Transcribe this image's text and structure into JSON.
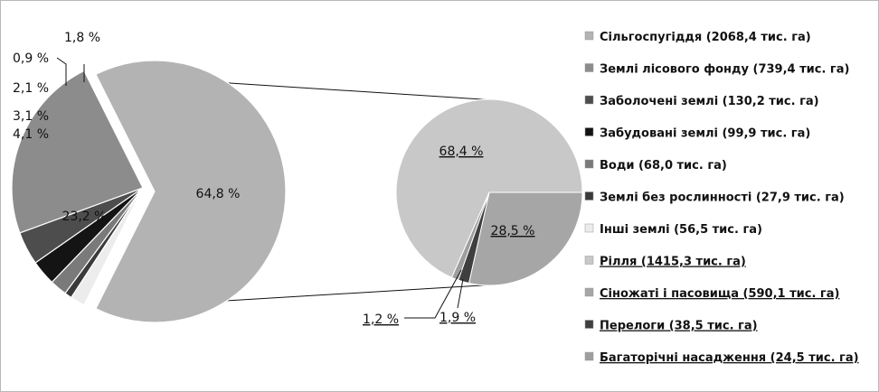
{
  "chart_data": [
    {
      "type": "pie",
      "title": "",
      "slices": [
        {
          "label": "64,8 %",
          "value": 64.8,
          "color": "#b3b3b3",
          "legend": "Сільгоспугіддя  (2068,4 тис. га)"
        },
        {
          "label": "23,2 %",
          "value": 23.2,
          "color": "#8c8c8c",
          "legend": "Землі лісового  фонду (739,4 тис. га)"
        },
        {
          "label": "4,1 %",
          "value": 4.1,
          "color": "#4d4d4d",
          "legend": "Заболочені землі (130,2 тис. га)"
        },
        {
          "label": "3,1 %",
          "value": 3.1,
          "color": "#141414",
          "legend": "Забудовані землі (99,9 тис. га)"
        },
        {
          "label": "2,1 %",
          "value": 2.1,
          "color": "#7a7a7a",
          "legend": "Води (68,0 тис. га)"
        },
        {
          "label": "0,9 %",
          "value": 0.9,
          "color": "#3a3a3a",
          "legend": "Землі без рослинності (27,9 тис. га)"
        },
        {
          "label": "1,8 %",
          "value": 1.8,
          "color": "#ececec",
          "legend": "Інші землі (56,5 тис. га)"
        }
      ]
    },
    {
      "type": "pie",
      "title": "",
      "slices": [
        {
          "label": "68,4 %",
          "value": 68.4,
          "color": "#c8c8c8",
          "legend": "Рілля  (1415,3 тис. га)"
        },
        {
          "label": "28,5 %",
          "value": 28.5,
          "color": "#a6a6a6",
          "legend": "Сіножаті і пасовища  (590,1 тис. га)"
        },
        {
          "label": "1,9 %",
          "value": 1.9,
          "color": "#3f3f3f",
          "legend": "Перелоги (38,5 тис. га)"
        },
        {
          "label": "1,2 %",
          "value": 1.2,
          "color": "#9e9e9e",
          "legend": "Багаторічні насадження (24,5 тис. га)"
        }
      ]
    }
  ],
  "legend_position": "right"
}
